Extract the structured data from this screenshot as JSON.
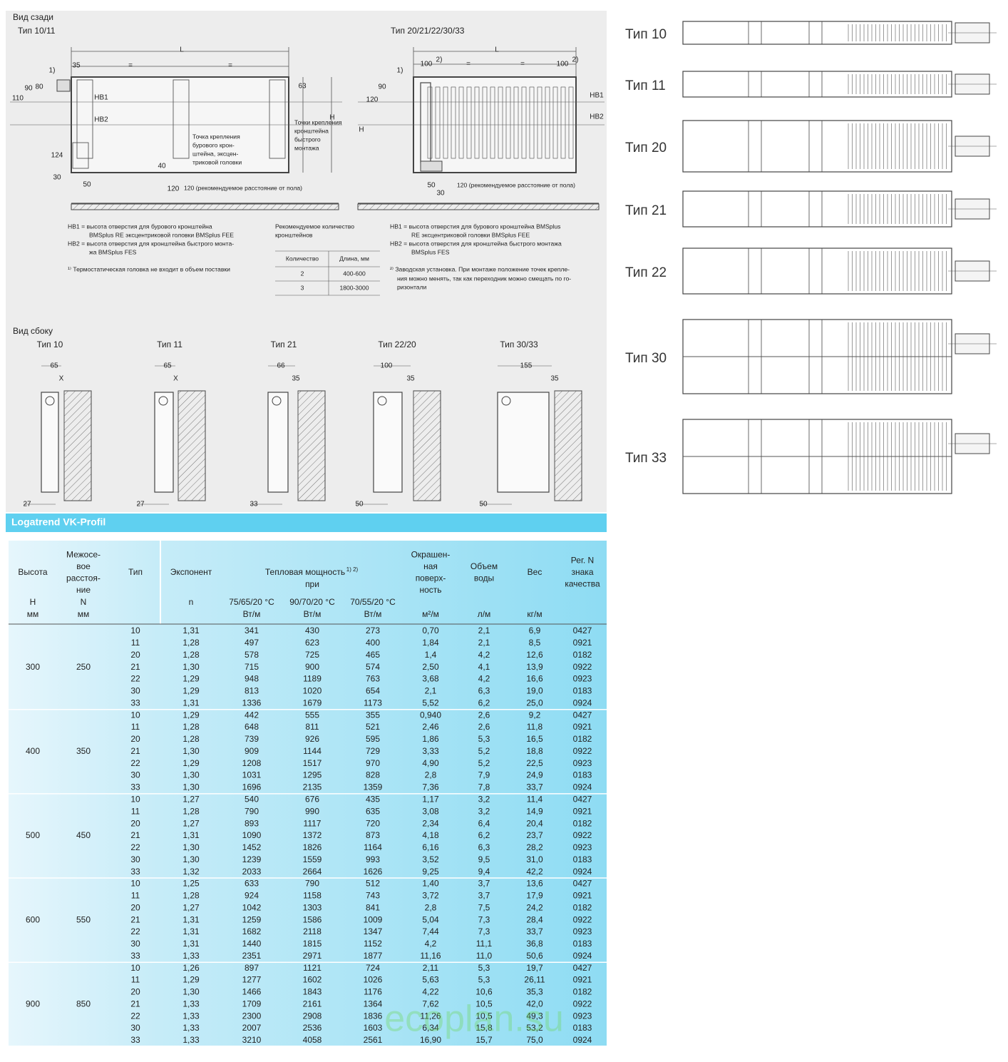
{
  "rear_view": {
    "title": "Вид сзади",
    "left_label": "Тип 10/11",
    "right_label": "Тип 20/21/22/30/33",
    "left_dims": [
      "L",
      "35",
      "=",
      "=",
      "1)",
      "90",
      "80",
      "110",
      "HB1",
      "HB2",
      "63",
      "H",
      "124",
      "40",
      "30",
      "50",
      "120",
      "120 (рекомендуемое расстояние от пола)"
    ],
    "left_callout_1": [
      "Точка крепления",
      "бурового крон-",
      "штейна, эксцен-",
      "триковой головки"
    ],
    "left_callout_2": [
      "Точки крепления",
      "кронштейна",
      "быстрого",
      "монтажа"
    ],
    "right_dims": [
      "L",
      "100",
      "2)",
      "=",
      "=",
      "100",
      "2)",
      "1)",
      "90",
      "120",
      "H",
      "HB1",
      "HB2",
      "50",
      "30",
      "120 (рекомендуемое расстояние от пола)"
    ],
    "left_notes": [
      "HB1 = высота отверстия для бурового кронштейна",
      "BMSplus RE эксцентриковой головки BMSplus FEE",
      "HB2 = высота отверстия для кронштейна быстрого монта-",
      "жа BMSplus FES",
      "¹⁾ Термостатическая головка не входит в объем поставки"
    ],
    "brackets": {
      "title": [
        "Рекомендуемое количество",
        "кронштейнов"
      ],
      "header": [
        "Количество",
        "Длина, мм"
      ],
      "rows": [
        [
          "2",
          "400-600"
        ],
        [
          "3",
          "1800-3000"
        ]
      ]
    },
    "right_notes": [
      "HB1 = высота отверстия для бурового кронштейна BMSplus",
      "RE эксцентриковой головки BMSplus FEE",
      "HB2 = высота отверстия для кронштейна быстрого монтажа",
      "BMSplus FES",
      "²⁾ Заводская установка. При монтаже положение точек крепле-",
      "ния можно менять, так как переходник можно смещать по го-",
      "ризонтали"
    ]
  },
  "side_view": {
    "title": "Вид сбоку",
    "types": [
      {
        "label": "Тип 10",
        "dims": [
          "65",
          "X",
          "27"
        ]
      },
      {
        "label": "Тип 11",
        "dims": [
          "65",
          "X",
          "27"
        ]
      },
      {
        "label": "Тип 21",
        "dims": [
          "66",
          "35",
          "33"
        ]
      },
      {
        "label": "Тип 22/20",
        "dims": [
          "100",
          "35",
          "50"
        ]
      },
      {
        "label": "Тип 30/33",
        "dims": [
          "155",
          "35",
          "50"
        ]
      }
    ]
  },
  "top_views": [
    "Тип 10",
    "Тип 11",
    "Тип 20",
    "Тип 21",
    "Тип 22",
    "Тип 30",
    "Тип 33"
  ],
  "table": {
    "title": "Logatrend VK-Profil",
    "columns": [
      {
        "lines": [
          "Высота"
        ],
        "units": [
          "H",
          "мм"
        ]
      },
      {
        "lines": [
          "Межосе-",
          "вое",
          "расстоя-",
          "ние"
        ],
        "units": [
          "N",
          "мм"
        ]
      },
      {
        "lines": [
          "Тип"
        ]
      },
      {
        "lines": [
          "Экспонент"
        ],
        "units": [
          "n"
        ]
      },
      {
        "units": [
          "75/65/20 °C",
          "Вт/м"
        ]
      },
      {
        "units": [
          "90/70/20 °C",
          "Вт/м"
        ]
      },
      {
        "units": [
          "70/55/20 °C",
          "Вт/м"
        ]
      },
      {
        "lines": [
          "Окрашен-",
          "ная",
          "поверх-",
          "ность"
        ],
        "units": [
          "м²/м"
        ]
      },
      {
        "lines": [
          "Объем",
          "воды"
        ],
        "units": [
          "л/м"
        ]
      },
      {
        "lines": [
          "Вес"
        ],
        "units": [
          "кг/м"
        ]
      },
      {
        "lines": [
          "Рег. N",
          "знака",
          "качества"
        ]
      }
    ],
    "power_header": {
      "title": "Тепловая мощность",
      "note": "1) 2)",
      "sub": "при"
    },
    "groups": [
      {
        "height": "300",
        "n": "250",
        "rows": [
          [
            "10",
            "1,31",
            "341",
            "430",
            "273",
            "0,70",
            "2,1",
            "6,9",
            "0427"
          ],
          [
            "11",
            "1,28",
            "497",
            "623",
            "400",
            "1,84",
            "2,1",
            "8,5",
            "0921"
          ],
          [
            "20",
            "1,28",
            "578",
            "725",
            "465",
            "1,4",
            "4,2",
            "12,6",
            "0182"
          ],
          [
            "21",
            "1,30",
            "715",
            "900",
            "574",
            "2,50",
            "4,1",
            "13,9",
            "0922"
          ],
          [
            "22",
            "1,29",
            "948",
            "1189",
            "763",
            "3,68",
            "4,2",
            "16,6",
            "0923"
          ],
          [
            "30",
            "1,29",
            "813",
            "1020",
            "654",
            "2,1",
            "6,3",
            "19,0",
            "0183"
          ],
          [
            "33",
            "1,31",
            "1336",
            "1679",
            "1173",
            "5,52",
            "6,2",
            "25,0",
            "0924"
          ]
        ]
      },
      {
        "height": "400",
        "n": "350",
        "rows": [
          [
            "10",
            "1,29",
            "442",
            "555",
            "355",
            "0,940",
            "2,6",
            "9,2",
            "0427"
          ],
          [
            "11",
            "1,28",
            "648",
            "811",
            "521",
            "2,46",
            "2,6",
            "11,8",
            "0921"
          ],
          [
            "20",
            "1,28",
            "739",
            "926",
            "595",
            "1,86",
            "5,3",
            "16,5",
            "0182"
          ],
          [
            "21",
            "1,30",
            "909",
            "1144",
            "729",
            "3,33",
            "5,2",
            "18,8",
            "0922"
          ],
          [
            "22",
            "1,29",
            "1208",
            "1517",
            "970",
            "4,90",
            "5,2",
            "22,5",
            "0923"
          ],
          [
            "30",
            "1,30",
            "1031",
            "1295",
            "828",
            "2,8",
            "7,9",
            "24,9",
            "0183"
          ],
          [
            "33",
            "1,30",
            "1696",
            "2135",
            "1359",
            "7,36",
            "7,8",
            "33,7",
            "0924"
          ]
        ]
      },
      {
        "height": "500",
        "n": "450",
        "rows": [
          [
            "10",
            "1,27",
            "540",
            "676",
            "435",
            "1,17",
            "3,2",
            "11,4",
            "0427"
          ],
          [
            "11",
            "1,28",
            "790",
            "990",
            "635",
            "3,08",
            "3,2",
            "14,9",
            "0921"
          ],
          [
            "20",
            "1,27",
            "893",
            "1117",
            "720",
            "2,34",
            "6,4",
            "20,4",
            "0182"
          ],
          [
            "21",
            "1,31",
            "1090",
            "1372",
            "873",
            "4,18",
            "6,2",
            "23,7",
            "0922"
          ],
          [
            "22",
            "1,30",
            "1452",
            "1826",
            "1164",
            "6,16",
            "6,3",
            "28,2",
            "0923"
          ],
          [
            "30",
            "1,30",
            "1239",
            "1559",
            "993",
            "3,52",
            "9,5",
            "31,0",
            "0183"
          ],
          [
            "33",
            "1,32",
            "2033",
            "2664",
            "1626",
            "9,25",
            "9,4",
            "42,2",
            "0924"
          ]
        ]
      },
      {
        "height": "600",
        "n": "550",
        "rows": [
          [
            "10",
            "1,25",
            "633",
            "790",
            "512",
            "1,40",
            "3,7",
            "13,6",
            "0427"
          ],
          [
            "11",
            "1,28",
            "924",
            "1158",
            "743",
            "3,72",
            "3,7",
            "17,9",
            "0921"
          ],
          [
            "20",
            "1,27",
            "1042",
            "1303",
            "841",
            "2,8",
            "7,5",
            "24,2",
            "0182"
          ],
          [
            "21",
            "1,31",
            "1259",
            "1586",
            "1009",
            "5,04",
            "7,3",
            "28,4",
            "0922"
          ],
          [
            "22",
            "1,31",
            "1682",
            "2118",
            "1347",
            "7,44",
            "7,3",
            "33,7",
            "0923"
          ],
          [
            "30",
            "1,31",
            "1440",
            "1815",
            "1152",
            "4,2",
            "11,1",
            "36,8",
            "0183"
          ],
          [
            "33",
            "1,33",
            "2351",
            "2971",
            "1877",
            "11,16",
            "11,0",
            "50,6",
            "0924"
          ]
        ]
      },
      {
        "height": "900",
        "n": "850",
        "rows": [
          [
            "10",
            "1,26",
            "897",
            "1121",
            "724",
            "2,11",
            "5,3",
            "19,7",
            "0427"
          ],
          [
            "11",
            "1,29",
            "1277",
            "1602",
            "1026",
            "5,63",
            "5,3",
            "26,11",
            "0921"
          ],
          [
            "20",
            "1,30",
            "1466",
            "1843",
            "1176",
            "4,22",
            "10,6",
            "35,3",
            "0182"
          ],
          [
            "21",
            "1,33",
            "1709",
            "2161",
            "1364",
            "7,62",
            "10,5",
            "42,0",
            "0922"
          ],
          [
            "22",
            "1,33",
            "2300",
            "2908",
            "1836",
            "11,26",
            "10,5",
            "49,3",
            "0923"
          ],
          [
            "30",
            "1,33",
            "2007",
            "2536",
            "1603",
            "6,34",
            "15,8",
            "53,2",
            "0183"
          ],
          [
            "33",
            "1,33",
            "3210",
            "4058",
            "2561",
            "16,90",
            "15,7",
            "75,0",
            "0924"
          ]
        ]
      }
    ]
  },
  "watermark": "ecoplan.su"
}
